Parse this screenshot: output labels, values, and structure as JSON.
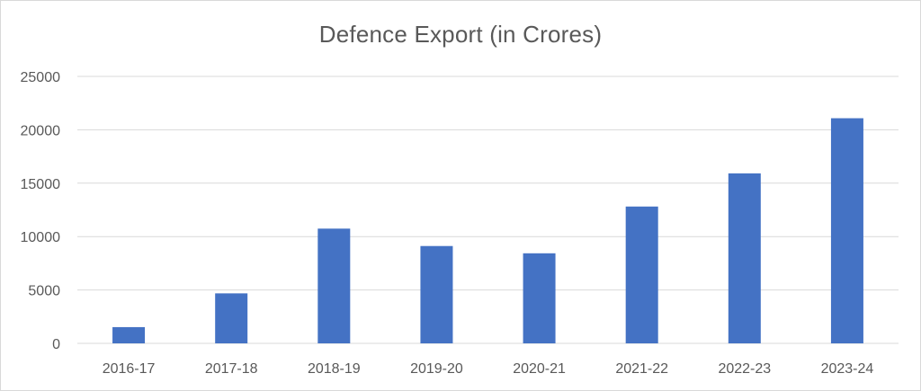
{
  "chart_data": {
    "type": "bar",
    "title": "Defence Export (in Crores)",
    "categories": [
      "2016-17",
      "2017-18",
      "2018-19",
      "2019-20",
      "2020-21",
      "2021-22",
      "2022-23",
      "2023-24"
    ],
    "values": [
      1521,
      4682,
      10745,
      9115,
      8434,
      12814,
      15920,
      21083
    ],
    "ylim": [
      0,
      25000
    ],
    "yticks": [
      0,
      5000,
      10000,
      15000,
      20000,
      25000
    ],
    "grid": true,
    "bar_color": "#4472C4",
    "grid_color": "#d9d9d9",
    "text_color": "#595959"
  }
}
